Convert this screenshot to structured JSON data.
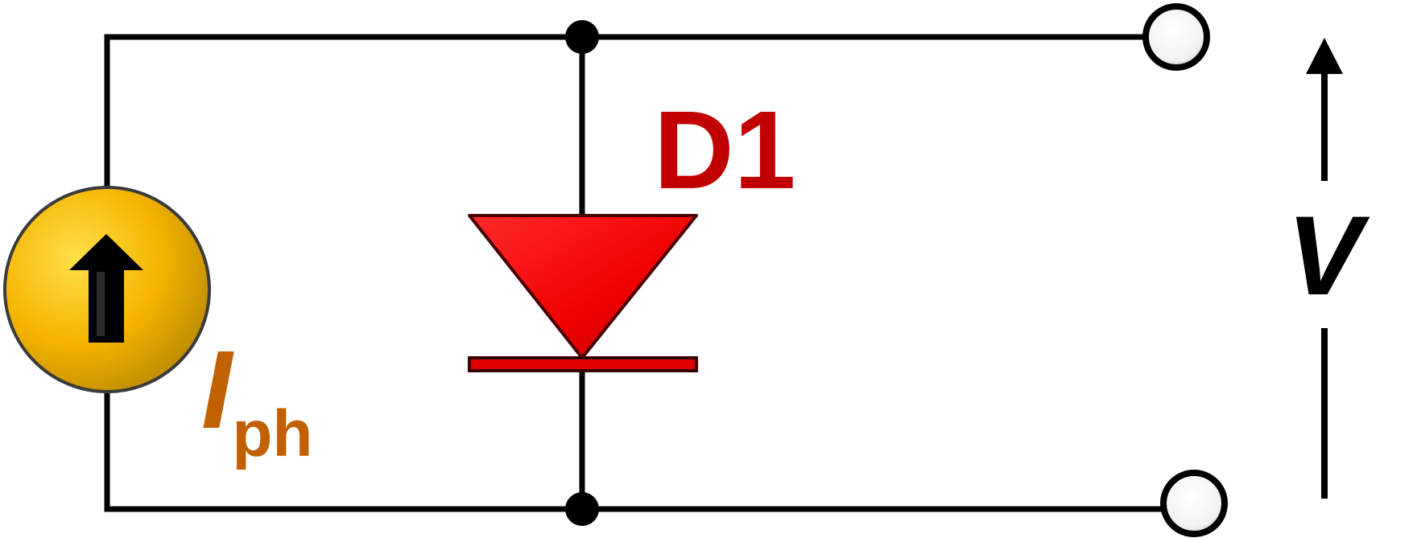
{
  "diagram": {
    "diode_label": "D1",
    "source_label_main": "I",
    "source_label_sub": "ph",
    "voltage_label": "V"
  },
  "colors": {
    "wire": "#000000",
    "diode": "#ff0000",
    "diode_label": "#c00000",
    "source_fill": "#f5b400",
    "source_label": "#c06000",
    "terminal_fill": "#ffffff"
  },
  "icons": {
    "source_arrow": "up-arrow-icon",
    "voltage_arrow": "up-arrow-icon"
  }
}
